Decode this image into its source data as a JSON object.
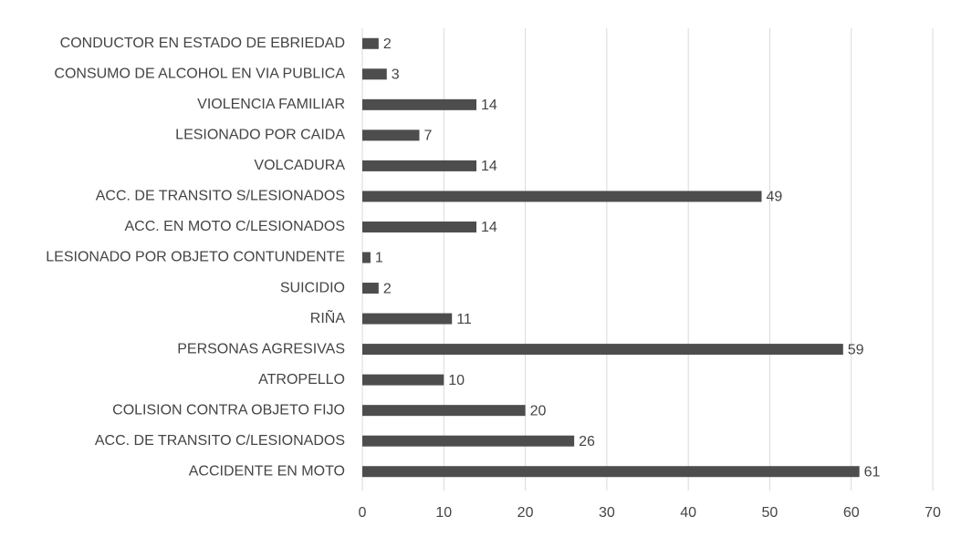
{
  "chart_data": {
    "type": "barh",
    "categories": [
      "CONDUCTOR EN ESTADO DE EBRIEDAD",
      "CONSUMO DE ALCOHOL EN VIA PUBLICA",
      "VIOLENCIA FAMILIAR",
      "LESIONADO POR CAIDA",
      "VOLCADURA",
      "ACC. DE TRANSITO S/LESIONADOS",
      "ACC. EN MOTO C/LESIONADOS",
      "LESIONADO POR OBJETO CONTUNDENTE",
      "SUICIDIO",
      "RIÑA",
      "PERSONAS AGRESIVAS",
      "ATROPELLO",
      "COLISION CONTRA OBJETO FIJO",
      "ACC. DE TRANSITO C/LESIONADOS",
      "ACCIDENTE EN MOTO"
    ],
    "values": [
      2,
      3,
      14,
      7,
      14,
      49,
      14,
      1,
      2,
      11,
      59,
      10,
      20,
      26,
      61
    ],
    "color": "#4d4d4d",
    "xlim": [
      0,
      70
    ],
    "xticks": [
      0,
      10,
      20,
      30,
      40,
      50,
      60,
      70
    ],
    "grid": true
  }
}
